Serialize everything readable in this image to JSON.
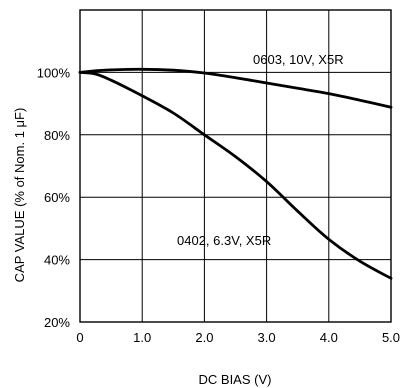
{
  "chart_data": {
    "type": "line",
    "xlabel": "DC BIAS (V)",
    "ylabel": "CAP VALUE (% of Nom. 1 μF)",
    "xlim": [
      0,
      5
    ],
    "ylim": [
      20,
      120
    ],
    "xticks": [
      0,
      1,
      2,
      3,
      4,
      5
    ],
    "xtick_labels": [
      "0",
      "1.0",
      "2.0",
      "3.0",
      "4.0",
      "5.0"
    ],
    "yticks": [
      20,
      40,
      60,
      80,
      100
    ],
    "ytick_labels": [
      "20%",
      "40%",
      "60%",
      "80%",
      "100%"
    ],
    "grid": true,
    "line_color": "#000000",
    "series": [
      {
        "name": "0603, 10V, X5R",
        "x": [
          0,
          0.25,
          0.5,
          1.0,
          1.5,
          2.0,
          2.5,
          3.0,
          3.5,
          4.0,
          4.5,
          5.0
        ],
        "y": [
          100,
          100.5,
          100.8,
          101,
          100.7,
          99.8,
          98.3,
          96.6,
          94.9,
          93.2,
          91.1,
          88.8
        ]
      },
      {
        "name": "0402, 6.3V, X5R",
        "x": [
          0,
          0.25,
          0.5,
          1.0,
          1.5,
          2.0,
          2.5,
          3.0,
          3.5,
          4.0,
          4.5,
          5.0
        ],
        "y": [
          100,
          99.5,
          97.5,
          92.5,
          87,
          80,
          73,
          65,
          55.5,
          46.5,
          39.5,
          34
        ]
      }
    ]
  }
}
